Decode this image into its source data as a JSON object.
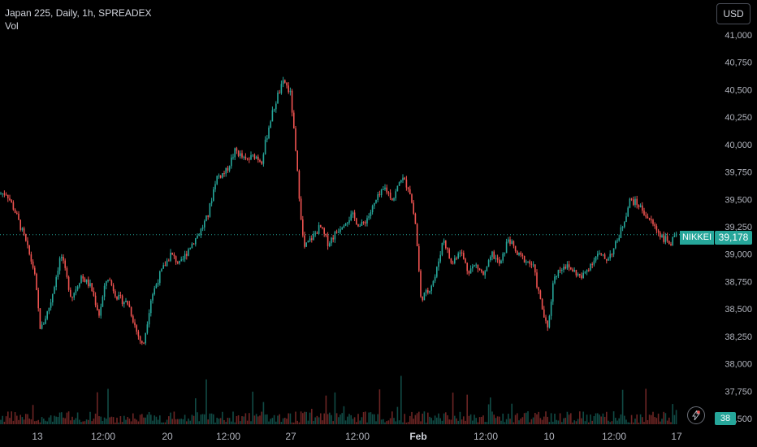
{
  "header": {
    "symbol_line": "Japan 225, Daily, 1h, SPREADEX",
    "volume_label": "Vol"
  },
  "currency_button": "USD",
  "last_price": {
    "series_label": "NIKKEI",
    "value": "39,178"
  },
  "volume_last": "38",
  "colors": {
    "up": "#26a69a",
    "down": "#ef5350",
    "background": "#000000",
    "axis_text": "#b2b5be"
  },
  "chart_data": {
    "type": "candlestick",
    "y_axis_ticks": [
      "41,000",
      "40,750",
      "40,500",
      "40,250",
      "40,000",
      "39,750",
      "39,500",
      "39,250",
      "39,000",
      "38,750",
      "38,500",
      "38,250",
      "38,000",
      "37,750",
      "37,500"
    ],
    "ylim": [
      37500,
      41000
    ],
    "x_axis_ticks": [
      "13",
      "12:00",
      "20",
      "12:00",
      "27",
      "12:00",
      "Feb",
      "12:00",
      "10",
      "12:00",
      "17"
    ],
    "last_price_line": 39178,
    "grid": false,
    "approx_close_path": [
      [
        0,
        39550
      ],
      [
        8,
        39560
      ],
      [
        18,
        39400
      ],
      [
        30,
        39150
      ],
      [
        42,
        38850
      ],
      [
        50,
        38300
      ],
      [
        62,
        38550
      ],
      [
        75,
        39000
      ],
      [
        88,
        38600
      ],
      [
        100,
        38800
      ],
      [
        112,
        38700
      ],
      [
        122,
        38450
      ],
      [
        132,
        38800
      ],
      [
        145,
        38600
      ],
      [
        158,
        38550
      ],
      [
        168,
        38300
      ],
      [
        176,
        38150
      ],
      [
        186,
        38600
      ],
      [
        196,
        38800
      ],
      [
        210,
        39000
      ],
      [
        222,
        38900
      ],
      [
        232,
        39050
      ],
      [
        246,
        39200
      ],
      [
        256,
        39350
      ],
      [
        266,
        39700
      ],
      [
        278,
        39750
      ],
      [
        290,
        39950
      ],
      [
        302,
        39850
      ],
      [
        314,
        39900
      ],
      [
        322,
        39850
      ],
      [
        332,
        40200
      ],
      [
        342,
        40450
      ],
      [
        350,
        40580
      ],
      [
        358,
        40450
      ],
      [
        366,
        39750
      ],
      [
        374,
        39050
      ],
      [
        384,
        39150
      ],
      [
        394,
        39250
      ],
      [
        404,
        39100
      ],
      [
        414,
        39200
      ],
      [
        424,
        39300
      ],
      [
        434,
        39350
      ],
      [
        444,
        39250
      ],
      [
        454,
        39350
      ],
      [
        464,
        39500
      ],
      [
        474,
        39600
      ],
      [
        484,
        39500
      ],
      [
        494,
        39700
      ],
      [
        504,
        39600
      ],
      [
        512,
        39250
      ],
      [
        518,
        38600
      ],
      [
        526,
        38650
      ],
      [
        536,
        38800
      ],
      [
        546,
        39150
      ],
      [
        556,
        38900
      ],
      [
        566,
        39050
      ],
      [
        576,
        38850
      ],
      [
        586,
        38900
      ],
      [
        596,
        38800
      ],
      [
        606,
        39000
      ],
      [
        616,
        38900
      ],
      [
        626,
        39150
      ],
      [
        636,
        39000
      ],
      [
        646,
        38950
      ],
      [
        656,
        38900
      ],
      [
        666,
        38550
      ],
      [
        674,
        38300
      ],
      [
        682,
        38800
      ],
      [
        694,
        38900
      ],
      [
        706,
        38850
      ],
      [
        716,
        38780
      ],
      [
        726,
        38900
      ],
      [
        736,
        39000
      ],
      [
        746,
        38950
      ],
      [
        756,
        39050
      ],
      [
        766,
        39250
      ],
      [
        776,
        39500
      ],
      [
        786,
        39450
      ],
      [
        796,
        39350
      ],
      [
        806,
        39250
      ],
      [
        816,
        39150
      ],
      [
        826,
        39100
      ],
      [
        834,
        39178
      ]
    ]
  }
}
